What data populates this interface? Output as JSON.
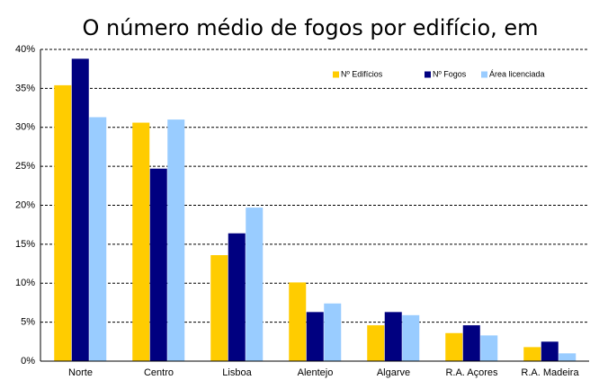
{
  "chart_data": {
    "type": "bar",
    "title": "O número médio de fogos por edifício, em",
    "categories": [
      "Norte",
      "Centro",
      "Lisboa",
      "Alentejo",
      "Algarve",
      "R.A. Açores",
      "R.A. Madeira"
    ],
    "series": [
      {
        "name": "Nº Edifícios",
        "color": "#ffcc00",
        "values": [
          35.4,
          30.6,
          13.6,
          10.1,
          4.6,
          3.6,
          1.8
        ]
      },
      {
        "name": "Nº Fogos",
        "color": "#000080",
        "values": [
          38.8,
          24.7,
          16.4,
          6.3,
          6.3,
          4.6,
          2.5
        ]
      },
      {
        "name": "Área licenciada",
        "color": "#99ccff",
        "values": [
          31.3,
          31.0,
          19.7,
          7.4,
          5.9,
          3.3,
          1.0
        ]
      }
    ],
    "ylim": [
      0,
      40
    ],
    "yticks": [
      {
        "value": 0,
        "label": "0%"
      },
      {
        "value": 5,
        "label": "5%"
      },
      {
        "value": 10,
        "label": "10%"
      },
      {
        "value": 15,
        "label": "15%"
      },
      {
        "value": 20,
        "label": "20%"
      },
      {
        "value": 25,
        "label": "25%"
      },
      {
        "value": 30,
        "label": "30%"
      },
      {
        "value": 35,
        "label": "35%"
      },
      {
        "value": 40,
        "label": "40%"
      }
    ],
    "grid": true,
    "legend": "top-right"
  }
}
